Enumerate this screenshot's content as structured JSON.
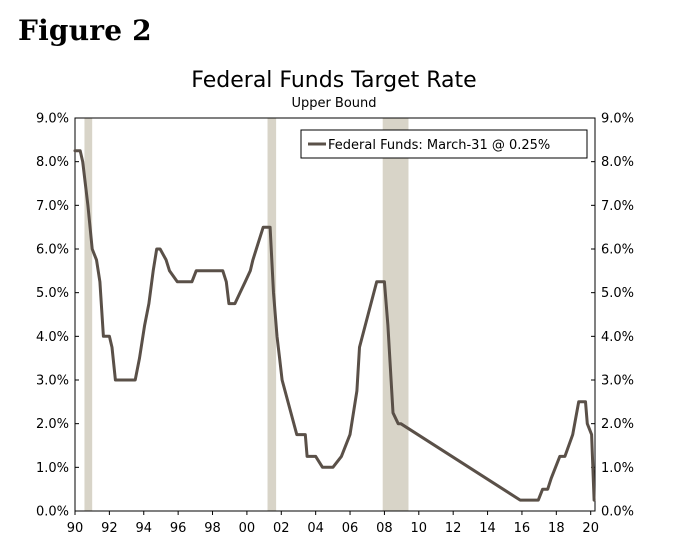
{
  "figure_label": "Figure 2",
  "chart_data": {
    "type": "line",
    "title": "Federal Funds Target Rate",
    "subtitle": "Upper Bound",
    "xlabel": "",
    "ylabel": "",
    "xlim": [
      1990,
      2020.25
    ],
    "ylim": [
      0,
      9
    ],
    "y_ticks": [
      {
        "value": 0,
        "label": "0.0%"
      },
      {
        "value": 1,
        "label": "1.0%"
      },
      {
        "value": 2,
        "label": "2.0%"
      },
      {
        "value": 3,
        "label": "3.0%"
      },
      {
        "value": 4,
        "label": "4.0%"
      },
      {
        "value": 5,
        "label": "5.0%"
      },
      {
        "value": 6,
        "label": "6.0%"
      },
      {
        "value": 7,
        "label": "7.0%"
      },
      {
        "value": 8,
        "label": "8.0%"
      },
      {
        "value": 9,
        "label": "9.0%"
      }
    ],
    "x_ticks": [
      {
        "value": 1990,
        "label": "90"
      },
      {
        "value": 1992,
        "label": "92"
      },
      {
        "value": 1994,
        "label": "94"
      },
      {
        "value": 1996,
        "label": "96"
      },
      {
        "value": 1998,
        "label": "98"
      },
      {
        "value": 2000,
        "label": "00"
      },
      {
        "value": 2002,
        "label": "02"
      },
      {
        "value": 2004,
        "label": "04"
      },
      {
        "value": 2006,
        "label": "06"
      },
      {
        "value": 2008,
        "label": "08"
      },
      {
        "value": 2010,
        "label": "10"
      },
      {
        "value": 2012,
        "label": "12"
      },
      {
        "value": 2014,
        "label": "14"
      },
      {
        "value": 2016,
        "label": "16"
      },
      {
        "value": 2018,
        "label": "18"
      },
      {
        "value": 2020,
        "label": "20"
      }
    ],
    "recessions": [
      {
        "start": 1990.55,
        "end": 1991.0
      },
      {
        "start": 2001.2,
        "end": 2001.7
      },
      {
        "start": 2007.9,
        "end": 2009.4
      }
    ],
    "legend_position": "top-right",
    "grid": false,
    "series": [
      {
        "name": "Federal Funds: March-31 @ 0.25%",
        "color": "#5a5048",
        "x": [
          1990.0,
          1990.3,
          1990.45,
          1990.75,
          1991.0,
          1991.25,
          1991.45,
          1991.65,
          1991.8,
          1992.0,
          1992.15,
          1992.35,
          1992.6,
          1993.0,
          1993.5,
          1993.75,
          1994.05,
          1994.3,
          1994.55,
          1994.75,
          1994.95,
          1995.3,
          1995.5,
          1995.95,
          1996.05,
          1996.8,
          1997.05,
          1997.5,
          1998.05,
          1998.6,
          1998.8,
          1998.95,
          1999.3,
          1999.6,
          1999.9,
          2000.2,
          2000.35,
          2000.95,
          2001.0,
          2001.2,
          2001.35,
          2001.55,
          2001.75,
          2001.9,
          2002.05,
          2002.9,
          2003.1,
          2003.4,
          2003.5,
          2004.0,
          2004.4,
          2004.6,
          2005.0,
          2005.5,
          2006.0,
          2006.4,
          2006.55,
          2007.55,
          2007.75,
          2008.0,
          2008.2,
          2008.5,
          2008.8,
          2008.95,
          2015.9,
          2016.0,
          2016.95,
          2017.2,
          2017.5,
          2017.7,
          2018.2,
          2018.5,
          2018.95,
          2019.3,
          2019.5,
          2019.7,
          2019.8,
          2020.05,
          2020.2
        ],
        "values": [
          8.25,
          8.25,
          8.0,
          7.0,
          6.0,
          5.75,
          5.25,
          4.0,
          4.0,
          4.0,
          3.75,
          3.0,
          3.0,
          3.0,
          3.0,
          3.5,
          4.25,
          4.75,
          5.5,
          6.0,
          6.0,
          5.75,
          5.5,
          5.25,
          5.25,
          5.25,
          5.5,
          5.5,
          5.5,
          5.5,
          5.25,
          4.75,
          4.75,
          5.0,
          5.25,
          5.5,
          5.75,
          6.5,
          6.5,
          6.5,
          6.5,
          5.0,
          4.0,
          3.5,
          3.0,
          1.75,
          1.75,
          1.75,
          1.25,
          1.25,
          1.0,
          1.0,
          1.0,
          1.25,
          1.75,
          2.75,
          3.75,
          5.25,
          5.25,
          5.25,
          4.25,
          2.25,
          2.0,
          2.0,
          0.25,
          0.25,
          0.25,
          0.5,
          0.5,
          0.75,
          1.25,
          1.25,
          1.75,
          2.5,
          2.5,
          2.5,
          2.0,
          1.75,
          0.25
        ]
      }
    ]
  }
}
